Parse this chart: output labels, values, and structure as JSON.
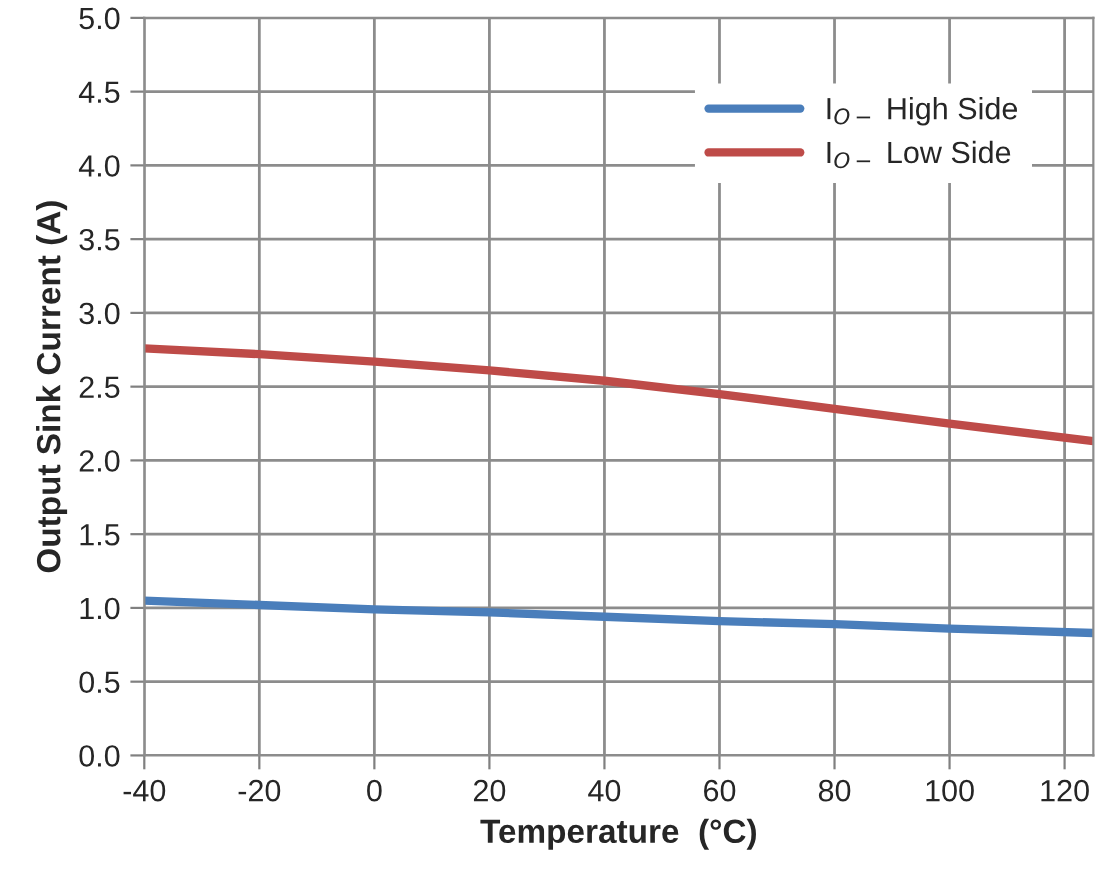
{
  "chart_data": {
    "type": "line",
    "xlabel": "Temperature  (°C)",
    "ylabel": "Output Sink Current (A)",
    "x": [
      -40,
      -20,
      0,
      20,
      40,
      60,
      80,
      100,
      125
    ],
    "series": [
      {
        "name": "I$_{O−}$ High Side",
        "color": "#4a7ebb",
        "values": [
          1.05,
          1.02,
          0.99,
          0.97,
          0.94,
          0.91,
          0.89,
          0.86,
          0.83
        ]
      },
      {
        "name": "I$_{O−}$ Low Side",
        "color": "#be4b48",
        "values": [
          2.76,
          2.72,
          2.67,
          2.61,
          2.54,
          2.45,
          2.35,
          2.25,
          2.13
        ]
      }
    ],
    "xlim": [
      -40,
      125
    ],
    "xticks": [
      -40,
      -20,
      0,
      20,
      40,
      60,
      80,
      100,
      120
    ],
    "ylim": [
      0,
      5
    ],
    "yticks": [
      {
        "value": 0,
        "label": "0.0"
      },
      {
        "value": 0.5,
        "label": "0.5"
      },
      {
        "value": 1,
        "label": "1.0"
      },
      {
        "value": 1.5,
        "label": "1.5"
      },
      {
        "value": 2,
        "label": "2.0"
      },
      {
        "value": 2.5,
        "label": "2.5"
      },
      {
        "value": 3,
        "label": "3.0"
      },
      {
        "value": 3.5,
        "label": "3.5"
      },
      {
        "value": 4,
        "label": "4.0"
      },
      {
        "value": 4.5,
        "label": "4.5"
      },
      {
        "value": 5,
        "label": "5.0"
      }
    ],
    "grid": true,
    "legend": "top right",
    "marker": "none",
    "line_style": "solid"
  }
}
